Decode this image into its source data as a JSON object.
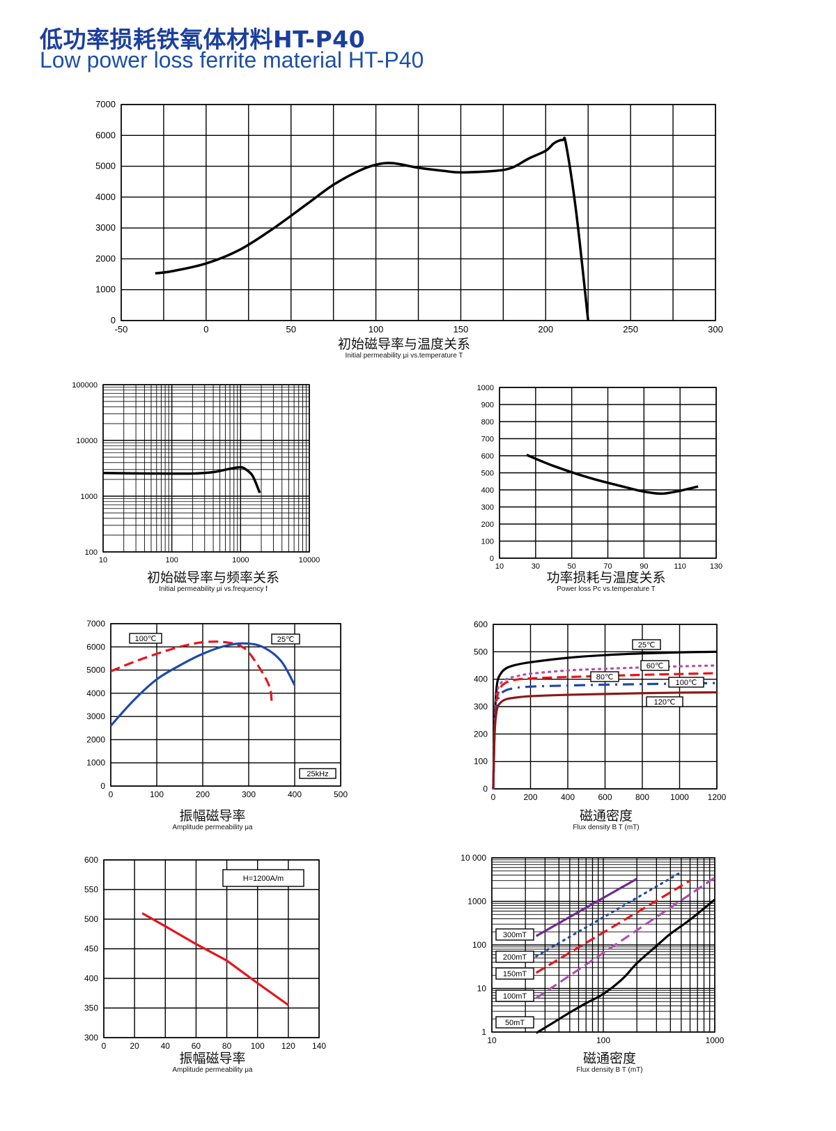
{
  "header": {
    "title_zh": "低功率损耗铁氧体材料HT-P40",
    "title_en": "Low power loss ferrite material HT-P40",
    "color_zh": "#1b3f9e",
    "color_en": "#1e50aa"
  },
  "chart_data": [
    {
      "id": "c1",
      "type": "line",
      "title_zh": "初始磁导率与温度关系",
      "title_en": "Initial permeability μi vs.temperature T",
      "xscale": "linear",
      "yscale": "linear",
      "xlim": [
        -50,
        300
      ],
      "ylim": [
        0,
        7000
      ],
      "xgrid": [
        -50,
        -25,
        0,
        25,
        50,
        75,
        100,
        125,
        150,
        175,
        200,
        225,
        250,
        275,
        300
      ],
      "ygrid": [
        0,
        1000,
        2000,
        3000,
        4000,
        5000,
        6000,
        7000
      ],
      "xticks": [
        "-50",
        "0",
        "50",
        "100",
        "150",
        "200",
        "250",
        "300"
      ],
      "xtick_values": [
        -50,
        0,
        50,
        100,
        150,
        200,
        250,
        300
      ],
      "yticks": [
        "0",
        "1000",
        "2000",
        "3000",
        "4000",
        "5000",
        "6000",
        "7000"
      ],
      "ytick_values": [
        0,
        1000,
        2000,
        3000,
        4000,
        5000,
        6000,
        7000
      ],
      "series": [
        {
          "name": "μi",
          "color": "#000000",
          "style": "solid",
          "x": [
            -30,
            -20,
            0,
            20,
            40,
            60,
            75,
            90,
            100,
            110,
            125,
            140,
            150,
            170,
            180,
            190,
            200,
            205,
            210,
            212,
            218,
            225
          ],
          "y": [
            1530,
            1600,
            1850,
            2300,
            3000,
            3800,
            4400,
            4850,
            5050,
            5100,
            4950,
            4850,
            4800,
            4850,
            4950,
            5250,
            5500,
            5750,
            5850,
            5700,
            3500,
            0
          ]
        }
      ],
      "labels": []
    },
    {
      "id": "c2",
      "type": "line",
      "title_zh": "初始磁导率与频率关系",
      "title_en": "Initial permeability μi vs.frequency f",
      "xscale": "log",
      "yscale": "log",
      "xlim": [
        10,
        10000
      ],
      "ylim": [
        100,
        100000
      ],
      "xticks": [
        "10",
        "100",
        "1000",
        "10000"
      ],
      "xtick_values": [
        10,
        100,
        1000,
        10000
      ],
      "yticks": [
        "100",
        "1000",
        "10000",
        "100000"
      ],
      "ytick_values": [
        100,
        1000,
        10000,
        100000
      ],
      "series": [
        {
          "name": "μi",
          "color": "#000000",
          "style": "solid",
          "x": [
            10,
            50,
            200,
            400,
            700,
            1000,
            1200,
            1500,
            1900
          ],
          "y": [
            2600,
            2550,
            2550,
            2700,
            3100,
            3300,
            3000,
            2300,
            1150
          ]
        }
      ],
      "labels": []
    },
    {
      "id": "c3",
      "type": "line",
      "title_zh": "功率损耗与温度关系",
      "title_en": "Power loss Pc vs.temperature T",
      "xscale": "linear",
      "yscale": "linear",
      "xlim": [
        10,
        130
      ],
      "ylim": [
        0,
        1000
      ],
      "xgrid": [
        10,
        30,
        50,
        70,
        90,
        110,
        130
      ],
      "ygrid": [
        0,
        100,
        200,
        300,
        400,
        500,
        600,
        700,
        800,
        900,
        1000
      ],
      "xticks": [
        "10",
        "30",
        "50",
        "70",
        "90",
        "110",
        "130"
      ],
      "xtick_values": [
        10,
        30,
        50,
        70,
        90,
        110,
        130
      ],
      "yticks": [
        "0",
        "100",
        "200",
        "300",
        "400",
        "500",
        "600",
        "700",
        "800",
        "900",
        "1000"
      ],
      "ytick_values": [
        0,
        100,
        200,
        300,
        400,
        500,
        600,
        700,
        800,
        900,
        1000
      ],
      "series": [
        {
          "name": "Pc",
          "color": "#000000",
          "style": "solid",
          "x": [
            25,
            40,
            60,
            80,
            90,
            100,
            110,
            120
          ],
          "y": [
            605,
            540,
            470,
            415,
            390,
            378,
            395,
            420
          ]
        }
      ],
      "labels": []
    },
    {
      "id": "c4",
      "type": "line",
      "title_zh": "振幅磁导率",
      "title_en": "Amplitude permeability μa",
      "xscale": "linear",
      "yscale": "linear",
      "xlim": [
        0,
        500
      ],
      "ylim": [
        0,
        7000
      ],
      "xgrid": [
        0,
        100,
        200,
        300,
        400,
        500
      ],
      "ygrid": [
        0,
        1000,
        2000,
        3000,
        4000,
        5000,
        6000,
        7000
      ],
      "xticks": [
        "0",
        "100",
        "200",
        "300",
        "400",
        "500"
      ],
      "xtick_values": [
        0,
        100,
        200,
        300,
        400,
        500
      ],
      "yticks": [
        "0",
        "1000",
        "2000",
        "3000",
        "4000",
        "5000",
        "6000",
        "7000"
      ],
      "ytick_values": [
        0,
        1000,
        2000,
        3000,
        4000,
        5000,
        6000,
        7000
      ],
      "series": [
        {
          "name": "100℃",
          "color": "#e8141b",
          "style": "dashed",
          "x": [
            0,
            50,
            100,
            150,
            200,
            250,
            290,
            320,
            345,
            350
          ],
          "y": [
            4950,
            5350,
            5700,
            6000,
            6200,
            6200,
            5950,
            5200,
            4300,
            3600
          ]
        },
        {
          "name": "25℃",
          "color": "#1f4aa8",
          "style": "solid",
          "x": [
            0,
            50,
            100,
            150,
            200,
            250,
            290,
            330,
            370,
            400
          ],
          "y": [
            2600,
            3700,
            4600,
            5200,
            5700,
            6050,
            6150,
            6000,
            5400,
            4350
          ]
        }
      ],
      "labels": [
        "100℃",
        "25℃",
        "25kHz"
      ]
    },
    {
      "id": "c5",
      "type": "line",
      "title_zh": "磁通密度",
      "title_en": "Flux density B T (mT)",
      "xscale": "linear",
      "yscale": "linear",
      "xlim": [
        0,
        1200
      ],
      "ylim": [
        0,
        600
      ],
      "xgrid": [
        0,
        200,
        400,
        600,
        800,
        1000,
        1200
      ],
      "ygrid": [
        0,
        100,
        200,
        300,
        400,
        500,
        600
      ],
      "xticks": [
        "0",
        "200",
        "400",
        "600",
        "800",
        "1000",
        "1200"
      ],
      "xtick_values": [
        0,
        200,
        400,
        600,
        800,
        1000,
        1200
      ],
      "yticks": [
        "0",
        "100",
        "200",
        "300",
        "400",
        "500",
        "600"
      ],
      "ytick_values": [
        0,
        100,
        200,
        300,
        400,
        500,
        600
      ],
      "series": [
        {
          "name": "25℃",
          "color": "#000000",
          "style": "solid",
          "x": [
            0,
            8,
            20,
            40,
            70,
            120,
            200,
            400,
            600,
            800,
            1000,
            1200
          ],
          "y": [
            0,
            250,
            380,
            420,
            440,
            452,
            462,
            478,
            488,
            494,
            498,
            500
          ]
        },
        {
          "name": "60℃",
          "color": "#b04fb0",
          "style": "dotted",
          "x": [
            0,
            8,
            20,
            40,
            70,
            120,
            200,
            400,
            600,
            800,
            1000,
            1200
          ],
          "y": [
            0,
            240,
            350,
            385,
            400,
            410,
            420,
            432,
            438,
            443,
            447,
            450
          ]
        },
        {
          "name": "80℃",
          "color": "#e8141b",
          "style": "dashed",
          "x": [
            0,
            8,
            20,
            40,
            70,
            120,
            200,
            400,
            600,
            800,
            1000,
            1200
          ],
          "y": [
            0,
            230,
            330,
            370,
            388,
            398,
            403,
            408,
            412,
            416,
            419,
            422
          ]
        },
        {
          "name": "100℃",
          "color": "#1f4aa8",
          "style": "dashdot",
          "x": [
            0,
            8,
            20,
            40,
            70,
            120,
            200,
            400,
            600,
            800,
            1000,
            1200
          ],
          "y": [
            0,
            220,
            310,
            345,
            360,
            368,
            373,
            377,
            380,
            382,
            384,
            386
          ]
        },
        {
          "name": "120℃",
          "color": "#8b1a1a",
          "style": "solid",
          "x": [
            0,
            8,
            20,
            40,
            70,
            120,
            200,
            400,
            600,
            800,
            1000,
            1200
          ],
          "y": [
            0,
            210,
            290,
            315,
            327,
            333,
            338,
            343,
            346,
            349,
            351,
            352
          ]
        }
      ],
      "labels": [
        "25℃",
        "60℃",
        "80℃",
        "100℃",
        "120℃"
      ]
    },
    {
      "id": "c6",
      "type": "line",
      "title_zh": "振幅磁导率",
      "title_en": "Amplitude permeability μa",
      "xscale": "linear",
      "yscale": "linear",
      "xlim": [
        0,
        140
      ],
      "ylim": [
        300,
        600
      ],
      "xgrid": [
        0,
        20,
        40,
        60,
        80,
        100,
        120,
        140
      ],
      "ygrid": [
        300,
        350,
        400,
        450,
        500,
        550,
        600
      ],
      "xticks": [
        "0",
        "20",
        "40",
        "60",
        "80",
        "100",
        "120",
        "140"
      ],
      "xtick_values": [
        0,
        20,
        40,
        60,
        80,
        100,
        120,
        140
      ],
      "yticks": [
        "300",
        "350",
        "400",
        "450",
        "500",
        "550",
        "600"
      ],
      "ytick_values": [
        300,
        350,
        400,
        450,
        500,
        550,
        600
      ],
      "series": [
        {
          "name": "μa",
          "color": "#e8141b",
          "style": "line",
          "x": [
            25,
            40,
            60,
            80,
            100,
            120
          ],
          "y": [
            510,
            488,
            458,
            430,
            392,
            355
          ]
        }
      ],
      "labels": [
        "H=1200A/m"
      ]
    },
    {
      "id": "c7",
      "type": "line",
      "title_zh": "磁通密度",
      "title_en": "Flux density B T (mT)",
      "xscale": "log",
      "yscale": "log",
      "xlim": [
        10,
        1000
      ],
      "ylim": [
        1,
        10000
      ],
      "xticks": [
        "10",
        "100",
        "1000"
      ],
      "xtick_values": [
        10,
        100,
        1000
      ],
      "yticks": [
        "1",
        "10",
        "100",
        "1000",
        "10 000"
      ],
      "ytick_values": [
        1,
        10,
        100,
        1000,
        10000
      ],
      "series": [
        {
          "name": "300mT",
          "color": "#6f2a8f",
          "style": "solid",
          "x": [
            25,
            200
          ],
          "y": [
            160,
            3300
          ]
        },
        {
          "name": "200mT",
          "color": "#1f4aa8",
          "style": "dotted",
          "x": [
            25,
            500
          ],
          "y": [
            55,
            4700
          ]
        },
        {
          "name": "150mT",
          "color": "#e8141b",
          "style": "dashed",
          "x": [
            25,
            600
          ],
          "y": [
            23,
            3000
          ]
        },
        {
          "name": "100mT",
          "color": "#b04fb0",
          "style": "dashed",
          "x": [
            25,
            1000
          ],
          "y": [
            6,
            3500
          ]
        },
        {
          "name": "50mT",
          "color": "#000000",
          "style": "solid",
          "x": [
            25,
            35,
            50,
            70,
            100,
            150,
            200,
            300,
            400,
            600,
            1000
          ],
          "y": [
            0.95,
            1.6,
            2.8,
            4.6,
            7.5,
            17,
            38,
            95,
            180,
            380,
            1100
          ]
        }
      ],
      "labels": [
        "300mT",
        "200mT",
        "150mT",
        "100mT",
        "50mT"
      ]
    }
  ]
}
